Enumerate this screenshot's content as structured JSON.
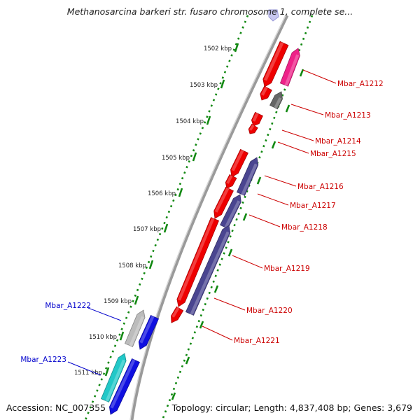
{
  "title": "Methanosarcina barkeri str. fusaro chromosome 1, complete se...",
  "footer": {
    "accession": "Accession: NC_007355",
    "summary": "Topology: circular; Length: 4,837,408 bp; Genes: 3,679"
  },
  "colors": {
    "cds_red": "#ee0000",
    "cds_pink": "#ee2288",
    "cds_gray": "#666666",
    "cds_slate": "#4a4590",
    "cds_blue": "#1010e0",
    "cds_cyan": "#22c8c8",
    "cds_silver": "#bcbcbc",
    "kbp_tick": "#118811",
    "label_red": "#cc0000",
    "label_blue": "#0000cc"
  },
  "kbp_ticks": [
    {
      "label": "1502 kbp",
      "kbp": 1502
    },
    {
      "label": "1503 kbp",
      "kbp": 1503
    },
    {
      "label": "1504 kbp",
      "kbp": 1504
    },
    {
      "label": "1505 kbp",
      "kbp": 1505
    },
    {
      "label": "1506 kbp",
      "kbp": 1506
    },
    {
      "label": "1507 kbp",
      "kbp": 1507
    },
    {
      "label": "1508 kbp",
      "kbp": 1508
    },
    {
      "label": "1509 kbp",
      "kbp": 1509
    },
    {
      "label": "1510 kbp",
      "kbp": 1510
    },
    {
      "label": "1511 kbp",
      "kbp": 1511
    }
  ],
  "genes": [
    {
      "name": "Mbar_A1212",
      "side": "right",
      "color": "label_red"
    },
    {
      "name": "Mbar_A1213",
      "side": "right",
      "color": "label_red"
    },
    {
      "name": "Mbar_A1214",
      "side": "right",
      "color": "label_red"
    },
    {
      "name": "Mbar_A1215",
      "side": "right",
      "color": "label_red"
    },
    {
      "name": "Mbar_A1216",
      "side": "right",
      "color": "label_red"
    },
    {
      "name": "Mbar_A1217",
      "side": "right",
      "color": "label_red"
    },
    {
      "name": "Mbar_A1218",
      "side": "right",
      "color": "label_red"
    },
    {
      "name": "Mbar_A1219",
      "side": "right",
      "color": "label_red"
    },
    {
      "name": "Mbar_A1220",
      "side": "right",
      "color": "label_red"
    },
    {
      "name": "Mbar_A1221",
      "side": "right",
      "color": "label_red"
    },
    {
      "name": "Mbar_A1222",
      "side": "left",
      "color": "label_blue"
    },
    {
      "name": "Mbar_A1223",
      "side": "left",
      "color": "label_blue"
    }
  ]
}
